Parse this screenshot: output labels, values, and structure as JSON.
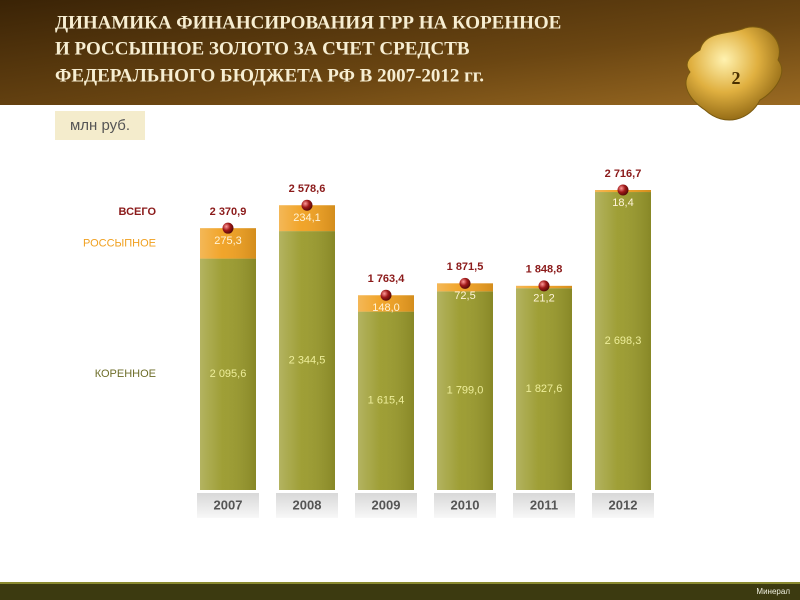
{
  "chart_data": {
    "type": "bar",
    "stacked": true,
    "title": [
      "ДИНАМИКА ФИНАНСИРОВАНИЯ ГРР НА КОРЕННОЕ",
      "И РОССЫПНОЕ ЗОЛОТО ЗА СЧЕТ СРЕДСТВ",
      "ФЕДЕРАЛЬНОГО БЮДЖЕТА РФ В 2007-2012 гг."
    ],
    "unit": "млн руб.",
    "categories": [
      "2007",
      "2008",
      "2009",
      "2010",
      "2011",
      "2012"
    ],
    "series": [
      {
        "name": "КОРЕННОЕ",
        "color": "#9a9a2c",
        "label_color": "#eeee9a",
        "values": [
          2095.6,
          2344.5,
          1615.4,
          1799.0,
          1827.6,
          2698.3
        ],
        "value_labels": [
          "2 095,6",
          "2 344,5",
          "1 615,4",
          "1 799,0",
          "1 827,6",
          "2 698,3"
        ]
      },
      {
        "name": "РОССЫПНОЕ",
        "color": "#f0a020",
        "label_color": "#fff4d8",
        "values": [
          275.3,
          234.1,
          148.0,
          72.5,
          21.2,
          18.4
        ],
        "value_labels": [
          "275,3",
          "234,1",
          "148,0",
          "72,5",
          "21,2",
          "18,4"
        ]
      }
    ],
    "totals": {
      "name": "ВСЕГО",
      "color": "#8b1a1a",
      "values": [
        2370.9,
        2578.6,
        1763.4,
        1871.5,
        1848.8,
        2716.7
      ],
      "value_labels": [
        "2 370,9",
        "2 578,6",
        "1 763,4",
        "1 871,5",
        "1 848,8",
        "2 716,7"
      ]
    }
  },
  "slide": {
    "page_number": 2,
    "footer": "Минерал"
  }
}
